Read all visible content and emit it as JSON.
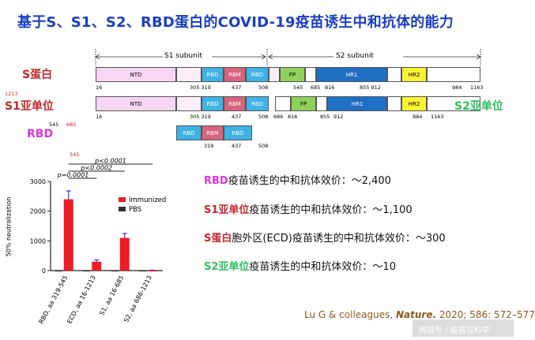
{
  "title": "基于S、S1、S2、RBD蛋白的COVID-19疫苗诱生中和抗体的能力",
  "colors": {
    "title": "#1a3fc4",
    "red": "#c0282d",
    "magenta": "#d63ad6",
    "green": "#2fbf60",
    "ntd": "#f6d6f3",
    "rbd": "#3fb2e6",
    "rbm": "#d7637f",
    "fp": "#8fd15a",
    "hr1": "#1f6fc4",
    "hr2": "#fff234",
    "cite": "#8a5a1c"
  },
  "diagram": {
    "s1_subunit": "S1 subunit",
    "s2_subunit": "S2 subunit",
    "labels": {
      "s": "S蛋白",
      "s1": "S1亚单位",
      "s2": "S2亚单位",
      "rbd": "RBD"
    },
    "domains": {
      "ntd": "NTD",
      "rbd": "RBD",
      "rbm": "RBM",
      "fp": "FP",
      "hr1": "HR1",
      "hr2": "HR2"
    },
    "row1_numbers": [
      "16",
      "305 319",
      "437",
      "508",
      "545",
      "685",
      "816",
      "855 912",
      "984",
      "1163"
    ],
    "row1_left_number": "1213",
    "row2_numbers": [
      "16",
      "305 319",
      "437",
      "508",
      "686",
      "816",
      "855",
      "912",
      "984",
      "1163"
    ],
    "row2_left_numbers": [
      "545",
      "685"
    ],
    "row3_numbers": [
      "319",
      "437",
      "508"
    ],
    "row3_left_number": "545"
  },
  "chart_data": {
    "type": "bar",
    "categories": [
      "RBD, aa 319-545",
      "ECD, aa 16-1213",
      "S1, aa 16-685",
      "S2, aa 686-1213"
    ],
    "series": [
      {
        "name": "Immunized",
        "values": [
          2400,
          300,
          1100,
          10
        ],
        "errors": [
          280,
          60,
          150,
          5
        ],
        "color": "#ee1c25"
      },
      {
        "name": "PBS",
        "values": [
          10,
          10,
          10,
          10
        ],
        "color": "#333333"
      }
    ],
    "ylabel": "50% neutralization",
    "ylim": [
      0,
      3000
    ],
    "yticks": [
      "0",
      "1000",
      "2000",
      "3000"
    ],
    "pvalues": [
      "p<0.0001",
      "p<0.0002",
      "p=0.0001"
    ],
    "legend_position": "top-right"
  },
  "stats": [
    {
      "label": "RBD",
      "text": "疫苗诱生的中和抗体效价：～2,400"
    },
    {
      "label": "S1亚单位",
      "text": "疫苗诱生的中和抗体效价：～1,100"
    },
    {
      "label": "S蛋白",
      "text": "胞外区(ECD)疫苗诱生的中和抗体效价：～300"
    },
    {
      "label": "S2亚单位",
      "text": "疫苗诱生的中和抗体效价：～10"
    }
  ],
  "citation": {
    "authors": "Lu G & colleagues, ",
    "journal": "Nature.",
    "rest": " 2020; 586: 572–577"
  },
  "watermark": "网易号 | 疫苗与科学"
}
